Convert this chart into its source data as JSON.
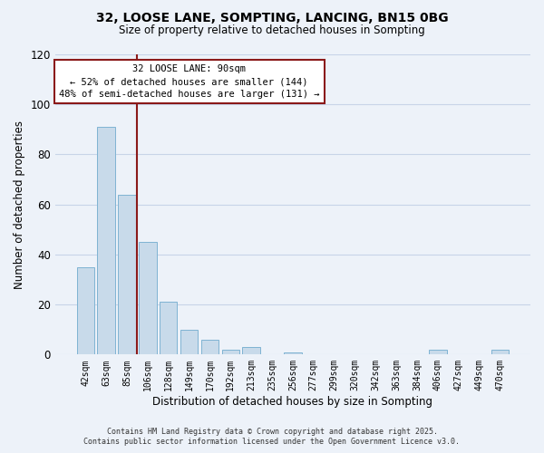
{
  "title1": "32, LOOSE LANE, SOMPTING, LANCING, BN15 0BG",
  "title2": "Size of property relative to detached houses in Sompting",
  "bar_labels": [
    "42sqm",
    "63sqm",
    "85sqm",
    "106sqm",
    "128sqm",
    "149sqm",
    "170sqm",
    "192sqm",
    "213sqm",
    "235sqm",
    "256sqm",
    "277sqm",
    "299sqm",
    "320sqm",
    "342sqm",
    "363sqm",
    "384sqm",
    "406sqm",
    "427sqm",
    "449sqm",
    "470sqm"
  ],
  "bar_values": [
    35,
    91,
    64,
    45,
    21,
    10,
    6,
    2,
    3,
    0,
    1,
    0,
    0,
    0,
    0,
    0,
    0,
    2,
    0,
    0,
    2
  ],
  "bar_color": "#c8daea",
  "bar_edge_color": "#7fb3d3",
  "vline_color": "#8b1a1a",
  "xlabel": "Distribution of detached houses by size in Sompting",
  "ylabel": "Number of detached properties",
  "ylim": [
    0,
    120
  ],
  "yticks": [
    0,
    20,
    40,
    60,
    80,
    100,
    120
  ],
  "annotation_title": "32 LOOSE LANE: 90sqm",
  "annotation_line1": "← 52% of detached houses are smaller (144)",
  "annotation_line2": "48% of semi-detached houses are larger (131) →",
  "annotation_box_color": "#ffffff",
  "annotation_box_edge": "#8b1a1a",
  "footer1": "Contains HM Land Registry data © Crown copyright and database right 2025.",
  "footer2": "Contains public sector information licensed under the Open Government Licence v3.0.",
  "background_color": "#edf2f9",
  "grid_color": "#c8d4e8"
}
